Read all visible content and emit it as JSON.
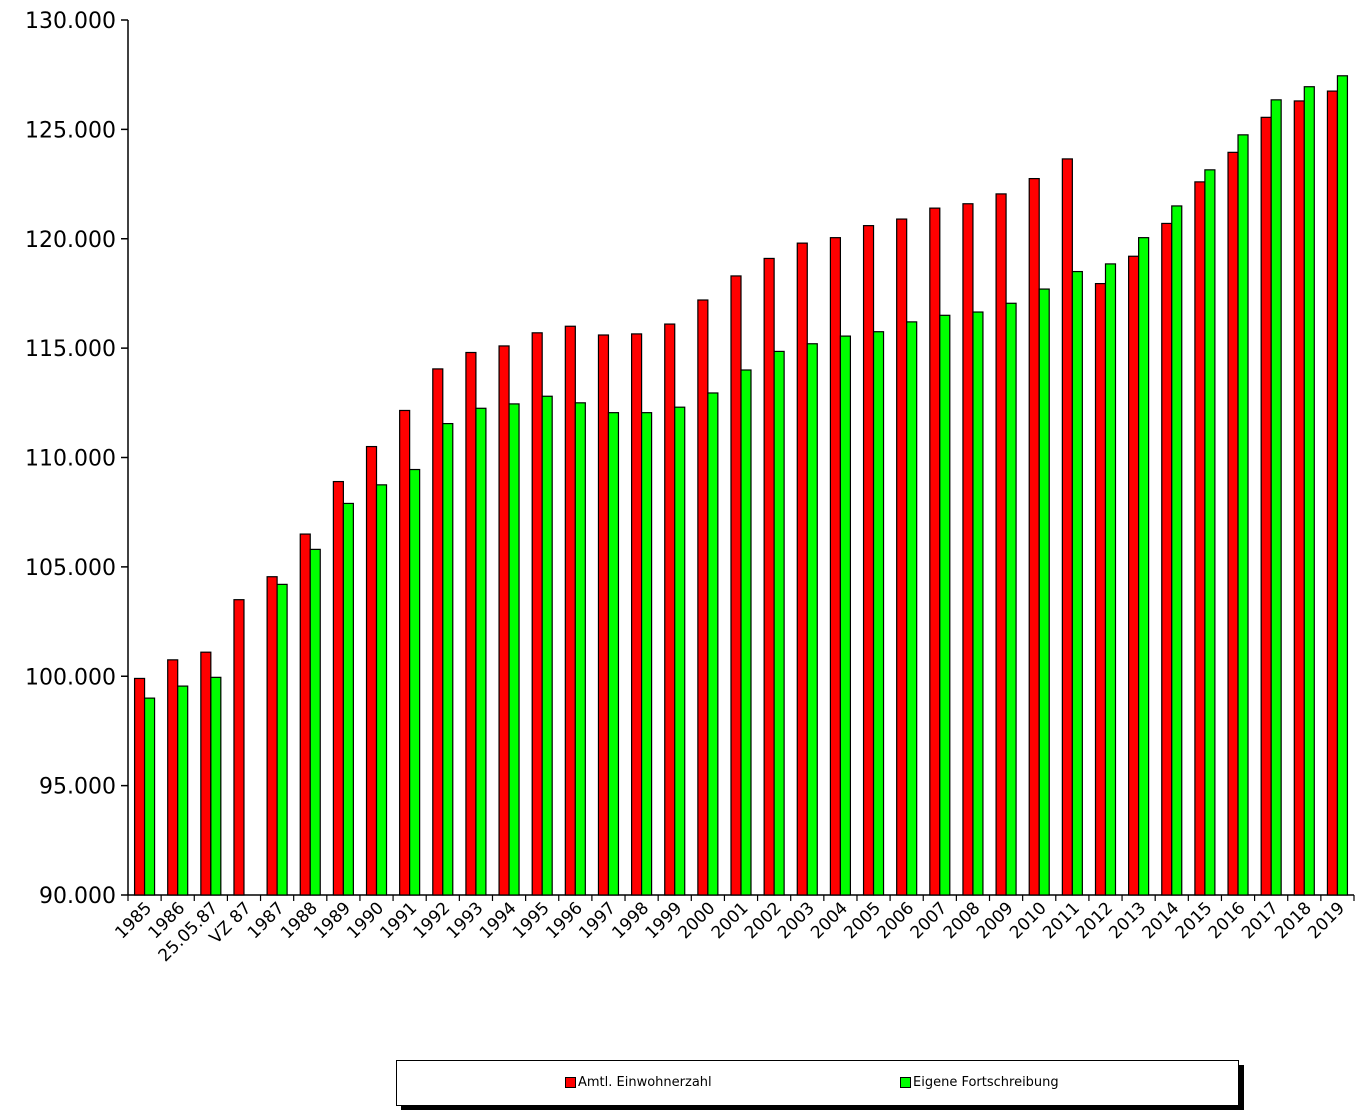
{
  "chart_data": {
    "type": "bar",
    "categories": [
      "1985",
      "1986",
      "25.05.87",
      "VZ 87",
      "1987",
      "1988",
      "1989",
      "1990",
      "1991",
      "1992",
      "1993",
      "1994",
      "1995",
      "1996",
      "1997",
      "1998",
      "1999",
      "2000",
      "2001",
      "2002",
      "2003",
      "2004",
      "2005",
      "2006",
      "2007",
      "2008",
      "2009",
      "2010",
      "2011",
      "2012",
      "2013",
      "2014",
      "2015",
      "2016",
      "2017",
      "2018",
      "2019"
    ],
    "series": [
      {
        "name": "Amtl. Einwohnerzahl",
        "color": "#ff0000",
        "values": [
          99900,
          100750,
          101100,
          103500,
          104550,
          106500,
          108900,
          110500,
          112150,
          114050,
          114800,
          115100,
          115700,
          116000,
          115600,
          115650,
          116100,
          117200,
          118300,
          119100,
          119800,
          120050,
          120600,
          120900,
          121400,
          121600,
          122050,
          122750,
          123650,
          117950,
          119200,
          120700,
          122600,
          123950,
          125550,
          126300,
          126750
        ]
      },
      {
        "name": "Eigene Fortschreibung",
        "color": "#00ff00",
        "values": [
          99000,
          99550,
          99950,
          null,
          104200,
          105800,
          107900,
          108750,
          109450,
          111550,
          112250,
          112450,
          112800,
          112500,
          112050,
          112050,
          112300,
          112950,
          114000,
          114850,
          115200,
          115550,
          115750,
          116200,
          116500,
          116650,
          117050,
          117700,
          118500,
          118850,
          120050,
          121500,
          123150,
          124750,
          126350,
          126950,
          127450
        ]
      }
    ],
    "ylim": [
      90000,
      130000
    ],
    "yticks": [
      90000,
      95000,
      100000,
      105000,
      110000,
      115000,
      120000,
      125000,
      130000
    ],
    "ytick_labels": [
      "90.000",
      "95.000",
      "100.000",
      "105.000",
      "110.000",
      "115.000",
      "120.000",
      "125.000",
      "130.000"
    ],
    "grid": false,
    "legend_position": "bottom"
  }
}
